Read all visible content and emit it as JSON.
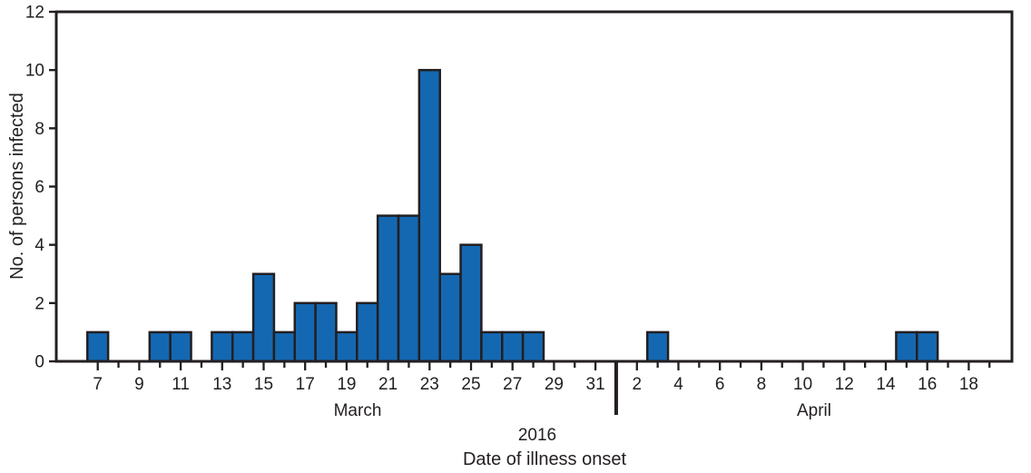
{
  "chart_data": {
    "type": "bar",
    "chart_kind": "epidemic-curve-histogram",
    "title": "",
    "xlabel": "Date of illness onset",
    "ylabel": "No. of persons infected",
    "year_label": "2016",
    "ylim": [
      0,
      12
    ],
    "yticks": [
      0,
      2,
      4,
      6,
      8,
      10,
      12
    ],
    "bar_width_days": 1,
    "grid": "off",
    "legend": "none",
    "months": [
      {
        "name": "March",
        "days": [
          5,
          6,
          7,
          8,
          9,
          10,
          11,
          12,
          13,
          14,
          15,
          16,
          17,
          18,
          19,
          20,
          21,
          22,
          23,
          24,
          25,
          26,
          27,
          28,
          29,
          30,
          31
        ],
        "values": [
          0,
          0,
          1,
          0,
          0,
          1,
          1,
          0,
          1,
          1,
          3,
          1,
          2,
          2,
          1,
          2,
          5,
          5,
          10,
          3,
          4,
          1,
          1,
          1,
          0,
          0,
          0
        ],
        "tick_days_range": [
          7,
          31
        ],
        "labeled_tick_days": [
          7,
          9,
          11,
          13,
          15,
          17,
          19,
          21,
          23,
          25,
          27,
          29,
          31
        ]
      },
      {
        "name": "April",
        "days": [
          1,
          2,
          3,
          4,
          5,
          6,
          7,
          8,
          9,
          10,
          11,
          12,
          13,
          14,
          15,
          16,
          17,
          18,
          19
        ],
        "values": [
          0,
          0,
          1,
          0,
          0,
          0,
          0,
          0,
          0,
          0,
          0,
          0,
          0,
          0,
          1,
          1,
          0,
          0,
          0
        ],
        "tick_days_range": [
          2,
          19
        ],
        "labeled_tick_days": [
          2,
          4,
          6,
          8,
          10,
          12,
          14,
          16,
          18
        ]
      }
    ],
    "colors": {
      "bar_fill": "#1468b2",
      "bar_border": "#231f20",
      "axis": "#231f20",
      "text": "#231f20",
      "background": "#ffffff"
    }
  }
}
